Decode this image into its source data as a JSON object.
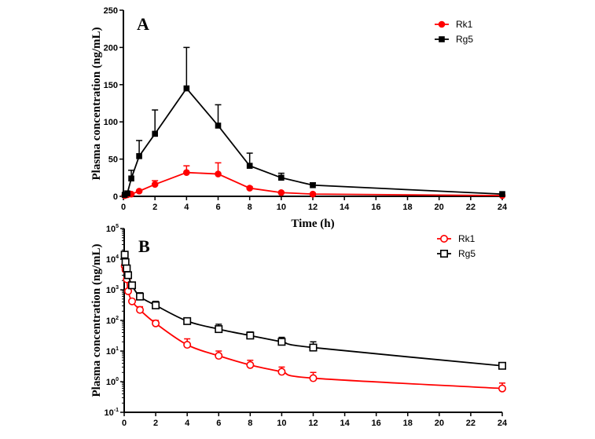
{
  "chart_data": [
    {
      "panel": "A",
      "type": "line",
      "title": "",
      "panel_label": "A",
      "xlabel": "Time (h)",
      "ylabel": "Plasma concentration (ng/mL)",
      "xlim": [
        0,
        24
      ],
      "ylim": [
        0,
        250
      ],
      "yscale": "linear",
      "xticks": [
        "0",
        "2",
        "4",
        "6",
        "8",
        "10",
        "12",
        "14",
        "16",
        "18",
        "20",
        "22",
        "24"
      ],
      "yticks": [
        "0",
        "50",
        "100",
        "150",
        "200",
        "250"
      ],
      "legend_position": "top-right",
      "series": [
        {
          "name": "Rk1",
          "color": "#ff0000",
          "marker": "filled-circle",
          "x": [
            0.083,
            0.25,
            0.5,
            1,
            2,
            4,
            6,
            8,
            10,
            12,
            24
          ],
          "y": [
            1,
            2,
            3,
            7,
            16,
            32,
            30,
            11,
            5,
            3,
            1
          ],
          "err_upper": [
            null,
            null,
            null,
            null,
            21,
            41,
            45,
            13,
            null,
            null,
            null
          ]
        },
        {
          "name": "Rg5",
          "color": "#000000",
          "marker": "filled-square",
          "x": [
            0.083,
            0.25,
            0.5,
            1,
            2,
            4,
            6,
            8,
            10,
            12,
            24
          ],
          "y": [
            2,
            4,
            24,
            54,
            84,
            145,
            95,
            41,
            25,
            15,
            3
          ],
          "err_upper": [
            null,
            null,
            35,
            75,
            116,
            200,
            123,
            58,
            31,
            18,
            null
          ]
        }
      ]
    },
    {
      "panel": "B",
      "type": "line",
      "title": "",
      "panel_label": "B",
      "xlabel": "",
      "ylabel": "Plasma concentration (ng/mL)",
      "xlim": [
        0,
        24
      ],
      "ylim": [
        0.1,
        100000
      ],
      "yscale": "log",
      "xticks": [
        "0",
        "2",
        "4",
        "6",
        "8",
        "10",
        "12",
        "14",
        "16",
        "18",
        "20",
        "22",
        "24"
      ],
      "yticks": [
        {
          "base": "10",
          "exp": "-1"
        },
        {
          "base": "10",
          "exp": "0"
        },
        {
          "base": "10",
          "exp": "1"
        },
        {
          "base": "10",
          "exp": "2"
        },
        {
          "base": "10",
          "exp": "3"
        },
        {
          "base": "10",
          "exp": "4"
        },
        {
          "base": "10",
          "exp": "5"
        }
      ],
      "legend_position": "top-right",
      "series": [
        {
          "name": "Rk1",
          "color": "#ff0000",
          "marker": "open-circle",
          "x": [
            0.033,
            0.083,
            0.167,
            0.25,
            0.5,
            1,
            2,
            4,
            6,
            8,
            10,
            12,
            24
          ],
          "y": [
            6000,
            4500,
            2200,
            900,
            420,
            220,
            80,
            16,
            7,
            3.5,
            2.1,
            1.3,
            0.6
          ],
          "err_upper": [
            null,
            null,
            null,
            null,
            null,
            280,
            100,
            25,
            10,
            5,
            3,
            2,
            0.9
          ]
        },
        {
          "name": "Rg5",
          "color": "#000000",
          "marker": "open-square",
          "x": [
            0.033,
            0.083,
            0.167,
            0.25,
            0.5,
            1,
            2,
            4,
            6,
            8,
            10,
            12,
            24
          ],
          "y": [
            14000,
            8000,
            5000,
            3000,
            1400,
            600,
            310,
            95,
            52,
            32,
            20,
            13,
            3.3
          ],
          "err_upper": [
            null,
            null,
            null,
            null,
            null,
            800,
            420,
            120,
            75,
            42,
            28,
            20,
            4
          ]
        }
      ]
    }
  ]
}
